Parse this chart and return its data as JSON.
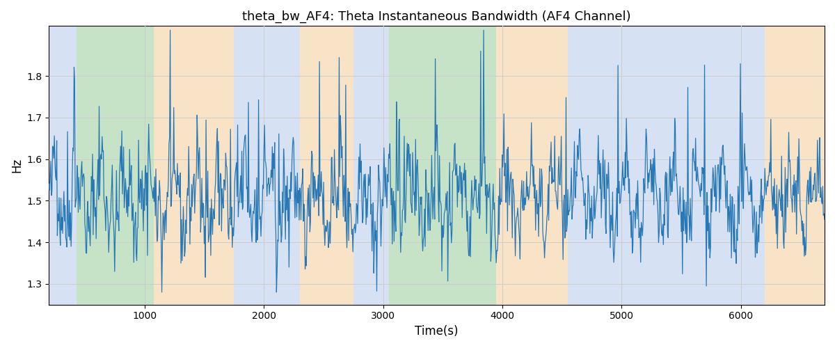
{
  "title": "theta_bw_AF4: Theta Instantaneous Bandwidth (AF4 Channel)",
  "xlabel": "Time(s)",
  "ylabel": "Hz",
  "xlim": [
    200,
    6700
  ],
  "ylim": [
    1.25,
    1.92
  ],
  "line_color": "#2878b5",
  "line_width": 0.9,
  "bg_bands": [
    {
      "xmin": 200,
      "xmax": 430,
      "color": "#aec6e8",
      "alpha": 0.5
    },
    {
      "xmin": 430,
      "xmax": 1080,
      "color": "#90c990",
      "alpha": 0.5
    },
    {
      "xmin": 1080,
      "xmax": 1750,
      "color": "#f5c890",
      "alpha": 0.5
    },
    {
      "xmin": 1750,
      "xmax": 2300,
      "color": "#aec6e8",
      "alpha": 0.5
    },
    {
      "xmin": 2300,
      "xmax": 2750,
      "color": "#f5c890",
      "alpha": 0.5
    },
    {
      "xmin": 2750,
      "xmax": 3050,
      "color": "#aec6e8",
      "alpha": 0.5
    },
    {
      "xmin": 3050,
      "xmax": 3950,
      "color": "#90c990",
      "alpha": 0.5
    },
    {
      "xmin": 3950,
      "xmax": 4550,
      "color": "#f5c890",
      "alpha": 0.5
    },
    {
      "xmin": 4550,
      "xmax": 6200,
      "color": "#aec6e8",
      "alpha": 0.5
    },
    {
      "xmin": 6200,
      "xmax": 6700,
      "color": "#f5c890",
      "alpha": 0.5
    }
  ],
  "yticks": [
    1.3,
    1.4,
    1.5,
    1.6,
    1.7,
    1.8
  ],
  "xticks": [
    1000,
    2000,
    3000,
    4000,
    5000,
    6000
  ],
  "grid_color": "#cccccc",
  "figsize": [
    12,
    5
  ],
  "dpi": 100,
  "seed": 42,
  "n_points": 1300,
  "t_start": 200,
  "t_end": 6700
}
